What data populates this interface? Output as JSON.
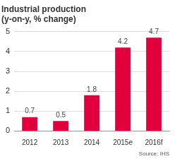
{
  "chart_data": {
    "type": "bar",
    "title": [
      "Industrial production",
      "(y-on-y, % change)"
    ],
    "source": "Source: IHS",
    "categories": [
      "2012",
      "2013",
      "2014",
      "2015e",
      "2016f"
    ],
    "values": [
      0.7,
      0.5,
      1.8,
      4.2,
      4.7
    ],
    "color": "#e2003c",
    "ylim": [
      0,
      5
    ],
    "yticks": [
      0,
      1,
      2,
      3,
      4,
      5
    ],
    "grid": true,
    "data_labels": true
  }
}
